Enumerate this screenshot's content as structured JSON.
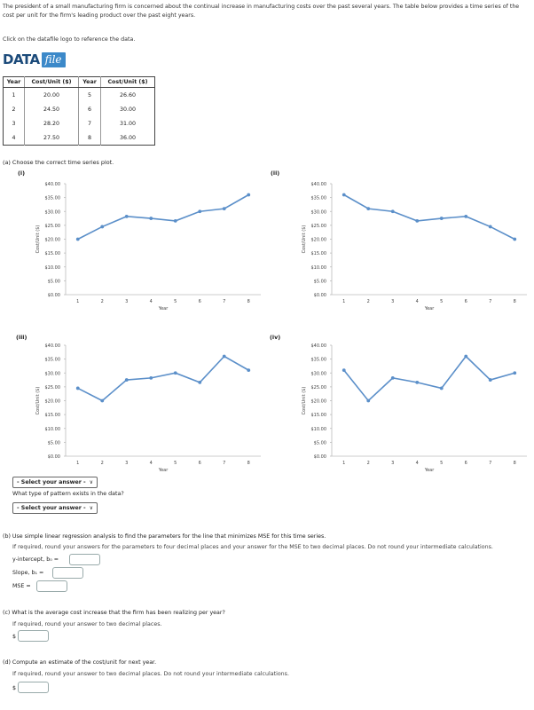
{
  "intro": "The president of a small manufacturing firm is concerned about the continual increase in manufacturing costs over the past several years. The table below provides a time series of the cost per unit for the firm's leading product over the past eight years.",
  "click_text": "Click on the datafile logo to reference the data.",
  "logo": {
    "data": "DATA",
    "file": "file"
  },
  "table": {
    "headers": [
      "Year",
      "Cost/Unit ($)",
      "Year",
      "Cost/Unit ($)"
    ],
    "rows": [
      [
        "1",
        "20.00",
        "5",
        "26.60"
      ],
      [
        "2",
        "24.50",
        "6",
        "30.00"
      ],
      [
        "3",
        "28.20",
        "7",
        "31.00"
      ],
      [
        "4",
        "27.50",
        "8",
        "36.00"
      ]
    ]
  },
  "part_a": {
    "label": "(a) Choose the correct time series plot.",
    "option_labels": [
      "(i)",
      "(ii)",
      "(iii)",
      "(iv)"
    ],
    "select1": "- Select your answer -",
    "question": "What type of pattern exists in the data?",
    "select2": "- Select your answer -"
  },
  "chart_data": [
    {
      "type": "line",
      "x": [
        1,
        2,
        3,
        4,
        5,
        6,
        7,
        8
      ],
      "y": [
        20.0,
        24.5,
        28.2,
        27.5,
        26.6,
        30.0,
        31.0,
        36.0
      ],
      "xlabel": "Year",
      "ylabel": "Cost/Unit ($)",
      "ylim": [
        0,
        40
      ],
      "yticks": [
        "$40.00",
        "$35.00",
        "$30.00",
        "$25.00",
        "$20.00",
        "$15.00",
        "$10.00",
        "$5.00",
        "$0.00"
      ],
      "xticks": [
        "1",
        "2",
        "3",
        "4",
        "5",
        "6",
        "7",
        "8"
      ],
      "color": "#5b8fc9"
    },
    {
      "type": "line",
      "x": [
        1,
        2,
        3,
        4,
        5,
        6,
        7,
        8
      ],
      "y": [
        36.0,
        31.0,
        30.0,
        26.6,
        27.5,
        28.2,
        24.5,
        20.0
      ],
      "xlabel": "Year",
      "ylabel": "Cost/Unit ($)",
      "ylim": [
        0,
        40
      ],
      "yticks": [
        "$40.00",
        "$35.00",
        "$30.00",
        "$25.00",
        "$20.00",
        "$15.00",
        "$10.00",
        "$5.00",
        "$0.00"
      ],
      "xticks": [
        "1",
        "2",
        "3",
        "4",
        "5",
        "6",
        "7",
        "8"
      ],
      "color": "#5b8fc9"
    },
    {
      "type": "line",
      "x": [
        1,
        2,
        3,
        4,
        5,
        6,
        7,
        8
      ],
      "y": [
        24.5,
        20.0,
        27.5,
        28.2,
        30.0,
        26.6,
        36.0,
        31.0
      ],
      "xlabel": "Year",
      "ylabel": "Cost/Unit ($)",
      "ylim": [
        0,
        40
      ],
      "yticks": [
        "$40.00",
        "$35.00",
        "$30.00",
        "$25.00",
        "$20.00",
        "$15.00",
        "$10.00",
        "$5.00",
        "$0.00"
      ],
      "xticks": [
        "1",
        "2",
        "3",
        "4",
        "5",
        "6",
        "7",
        "8"
      ],
      "color": "#5b8fc9"
    },
    {
      "type": "line",
      "x": [
        1,
        2,
        3,
        4,
        5,
        6,
        7,
        8
      ],
      "y": [
        31.0,
        20.0,
        28.2,
        26.6,
        24.5,
        36.0,
        27.5,
        30.0
      ],
      "xlabel": "Year",
      "ylabel": "Cost/Unit ($)",
      "ylim": [
        0,
        40
      ],
      "yticks": [
        "$40.00",
        "$35.00",
        "$30.00",
        "$25.00",
        "$20.00",
        "$15.00",
        "$10.00",
        "$5.00",
        "$0.00"
      ],
      "xticks": [
        "1",
        "2",
        "3",
        "4",
        "5",
        "6",
        "7",
        "8"
      ],
      "color": "#5b8fc9"
    }
  ],
  "part_b": {
    "label": "(b) Use simple linear regression analysis to find the parameters for the line that minimizes MSE for this time series.",
    "note": "If required, round your answers for the parameters to four decimal places and your answer for the MSE to two decimal places. Do not round your intermediate calculations.",
    "intercept_label": "y-intercept, b₀ =",
    "slope_label": "Slope, b₁ =",
    "mse_label": "MSE ="
  },
  "part_c": {
    "label": "(c) What is the average cost increase that the firm has been realizing per year?",
    "note": "If required, round your answer to two decimal places.",
    "currency": "$"
  },
  "part_d": {
    "label": "(d) Compute an estimate of the cost/unit for next year.",
    "note": "If required, round your answer to two decimal places. Do not round your intermediate calculations.",
    "currency": "$"
  }
}
